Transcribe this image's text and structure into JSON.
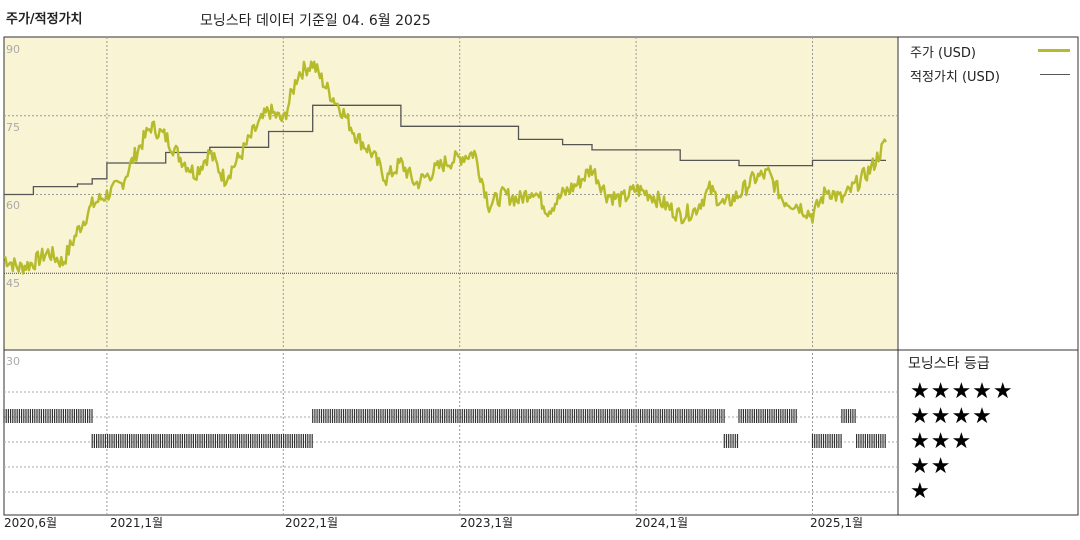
{
  "header": {
    "title": "주가/적정가치",
    "subtitle": "모닝스타 데이터 기준일 04. 6월 2025"
  },
  "legend": {
    "price_label": "주가 (USD)",
    "fair_label": "적정가치 (USD)",
    "price_color": "#b5bb2a",
    "fair_color": "#555555"
  },
  "rating": {
    "title": "모닝스타 등급",
    "rows": [
      "★★★★★",
      "★★★★",
      "★★★",
      "★★",
      "★"
    ]
  },
  "colors": {
    "plot_bg": "#f8f4d4",
    "bar_color": "#333333"
  },
  "chart_data": {
    "type": "line",
    "title": "주가/적정가치",
    "x_ticks": [
      "2020,6월",
      "2021,1월",
      "2022,1월",
      "2023,1월",
      "2024,1월",
      "2025,1월"
    ],
    "x_tick_dates": [
      "2020-06",
      "2021-01",
      "2022-01",
      "2023-01",
      "2024-01",
      "2025-01"
    ],
    "y_ticks": [
      90,
      75,
      60,
      45,
      30
    ],
    "ylim": [
      30,
      90
    ],
    "grid": true,
    "series": [
      {
        "name": "주가 (USD)",
        "color": "#b5bb2a",
        "x": [
          "2020-06",
          "2020-07",
          "2020-08",
          "2020-09",
          "2020-10",
          "2020-11",
          "2020-12",
          "2021-01",
          "2021-02",
          "2021-03",
          "2021-04",
          "2021-05",
          "2021-06",
          "2021-07",
          "2021-08",
          "2021-09",
          "2021-10",
          "2021-11",
          "2021-12",
          "2022-01",
          "2022-02",
          "2022-03",
          "2022-04",
          "2022-05",
          "2022-06",
          "2022-07",
          "2022-08",
          "2022-09",
          "2022-10",
          "2022-11",
          "2022-12",
          "2023-01",
          "2023-02",
          "2023-03",
          "2023-04",
          "2023-05",
          "2023-06",
          "2023-07",
          "2023-08",
          "2023-09",
          "2023-10",
          "2023-11",
          "2023-12",
          "2024-01",
          "2024-02",
          "2024-03",
          "2024-04",
          "2024-05",
          "2024-06",
          "2024-07",
          "2024-08",
          "2024-09",
          "2024-10",
          "2024-11",
          "2024-12",
          "2025-01",
          "2025-02",
          "2025-03",
          "2025-04",
          "2025-05",
          "2025-06"
        ],
        "values": [
          48,
          46,
          47,
          49,
          47,
          53,
          58,
          60,
          62,
          68,
          73,
          71,
          67,
          64,
          68,
          63,
          67,
          72,
          76,
          74,
          83,
          85,
          80,
          76,
          71,
          68,
          63,
          66,
          62,
          64,
          66,
          67,
          68,
          58,
          60,
          59,
          61,
          57,
          60,
          62,
          65,
          60,
          59,
          61,
          60,
          58,
          56,
          57,
          61,
          58,
          60,
          63,
          64,
          59,
          58,
          56,
          61,
          59,
          62,
          65,
          70
        ]
      },
      {
        "name": "적정가치 (USD)",
        "color": "#555555",
        "x": [
          "2020-06",
          "2020-08",
          "2020-08",
          "2020-11",
          "2020-11",
          "2020-12",
          "2020-12",
          "2021-01",
          "2021-01",
          "2021-05",
          "2021-05",
          "2021-08",
          "2021-08",
          "2021-12",
          "2021-12",
          "2022-03",
          "2022-03",
          "2022-09",
          "2022-09",
          "2023-05",
          "2023-05",
          "2023-08",
          "2023-08",
          "2023-10",
          "2023-10",
          "2024-04",
          "2024-04",
          "2024-08",
          "2024-08",
          "2025-01",
          "2025-01",
          "2025-06"
        ],
        "values": [
          60,
          60,
          61.5,
          61.5,
          62,
          62,
          63,
          63,
          66,
          66,
          68,
          68,
          69,
          69,
          72,
          72,
          77,
          77,
          73,
          73,
          70.5,
          70.5,
          69.5,
          69.5,
          68.5,
          68.5,
          66.5,
          66.5,
          65.5,
          65.5,
          66.5,
          66.5
        ]
      }
    ],
    "rating_history": {
      "labels": [
        "★★★★★",
        "★★★★",
        "★★★",
        "★★",
        "★"
      ],
      "segments": [
        {
          "stars": 4,
          "start": "2020-06",
          "end": "2020-12"
        },
        {
          "stars": 3,
          "start": "2020-12",
          "end": "2022-03"
        },
        {
          "stars": 4,
          "start": "2022-03",
          "end": "2024-07"
        },
        {
          "stars": 3,
          "start": "2024-07",
          "end": "2024-08"
        },
        {
          "stars": 4,
          "start": "2024-08",
          "end": "2024-12"
        },
        {
          "stars": 4,
          "start": "2025-03",
          "end": "2025-04"
        },
        {
          "stars": 3,
          "start": "2025-01",
          "end": "2025-03"
        },
        {
          "stars": 3,
          "start": "2025-04",
          "end": "2025-06"
        }
      ]
    }
  }
}
